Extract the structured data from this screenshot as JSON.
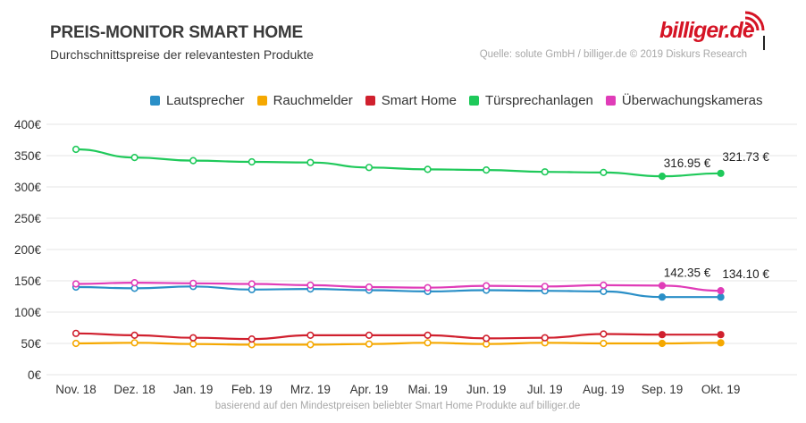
{
  "header": {
    "title": "PREIS-MONITOR SMART HOME",
    "subtitle": "Durchschnittspreise der relevantesten Produkte",
    "source": "Quelle: solute GmbH / billiger.de © 2019 Diskurs Research",
    "logo_text": "billiger.de",
    "footnote": "basierend auf den Mindestpreisen beliebter Smart Home Produkte auf billiger.de"
  },
  "chart_data": {
    "type": "line",
    "title": "PREIS-MONITOR SMART HOME",
    "subtitle": "Durchschnittspreise der relevantesten Produkte",
    "categories": [
      "Nov. 18",
      "Dez. 18",
      "Jan. 19",
      "Feb. 19",
      "Mrz. 19",
      "Apr. 19",
      "Mai. 19",
      "Jun. 19",
      "Jul. 19",
      "Aug. 19",
      "Sep. 19",
      "Okt. 19"
    ],
    "ylim": [
      0,
      400
    ],
    "yticks": [
      0,
      50,
      100,
      150,
      200,
      250,
      300,
      350,
      400
    ],
    "ytick_labels": [
      "0€",
      "50€",
      "100€",
      "150€",
      "200€",
      "250€",
      "300€",
      "350€",
      "400€"
    ],
    "grid": true,
    "legend_position": "top",
    "series": [
      {
        "name": "Lautsprecher",
        "color": "#2a8fc7",
        "values": [
          140,
          138,
          141,
          136,
          137,
          135,
          133,
          135,
          134,
          133,
          124,
          124
        ]
      },
      {
        "name": "Rauchmelder",
        "color": "#f5a800",
        "values": [
          50,
          51,
          49,
          48,
          48,
          49,
          51,
          49,
          51,
          50,
          50,
          51
        ]
      },
      {
        "name": "Smart Home",
        "color": "#d0202e",
        "values": [
          66,
          63,
          59,
          57,
          63,
          63,
          63,
          58,
          59,
          65,
          64,
          64
        ]
      },
      {
        "name": "Türsprechanlagen",
        "color": "#1fc95a",
        "values": [
          360,
          347,
          342,
          340,
          339,
          331,
          328,
          327,
          324,
          323,
          316.95,
          321.73
        ]
      },
      {
        "name": "Überwachungskameras",
        "color": "#e03cb8",
        "values": [
          145,
          147,
          146,
          145,
          143,
          140,
          139,
          142,
          141,
          143,
          142.35,
          134.1
        ]
      }
    ],
    "annotations": [
      {
        "series": "Türsprechanlagen",
        "category": "Sep. 19",
        "label": "316.95 €"
      },
      {
        "series": "Türsprechanlagen",
        "category": "Okt. 19",
        "label": "321.73 €"
      },
      {
        "series": "Überwachungskameras",
        "category": "Sep. 19",
        "label": "142.35 €"
      },
      {
        "series": "Überwachungskameras",
        "category": "Okt. 19",
        "label": "134.10 €"
      }
    ]
  }
}
